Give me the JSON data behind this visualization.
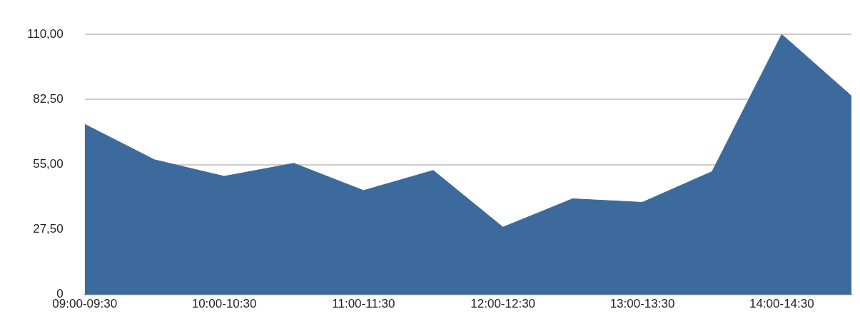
{
  "chart_data": {
    "type": "area",
    "categories": [
      "09:00-09:30",
      null,
      "10:00-10:30",
      null,
      "11:00-11:30",
      null,
      "12:00-12:30",
      null,
      "13:00-13:30",
      null,
      "14:00-14:30",
      null
    ],
    "series": [
      {
        "color": "#3d6a9c",
        "values": [
          72,
          57,
          50,
          55.5,
          44,
          52.5,
          28.5,
          40.5,
          39,
          52,
          110,
          84
        ]
      }
    ],
    "ylim": [
      0,
      110
    ],
    "yticks": [
      {
        "value": 0,
        "label": "0"
      },
      {
        "value": 27.5,
        "label": "27,50"
      },
      {
        "value": 55,
        "label": "55,00"
      },
      {
        "value": 82.5,
        "label": "82,50"
      },
      {
        "value": 110,
        "label": "110,00"
      }
    ],
    "grid": "y",
    "legend": false
  }
}
